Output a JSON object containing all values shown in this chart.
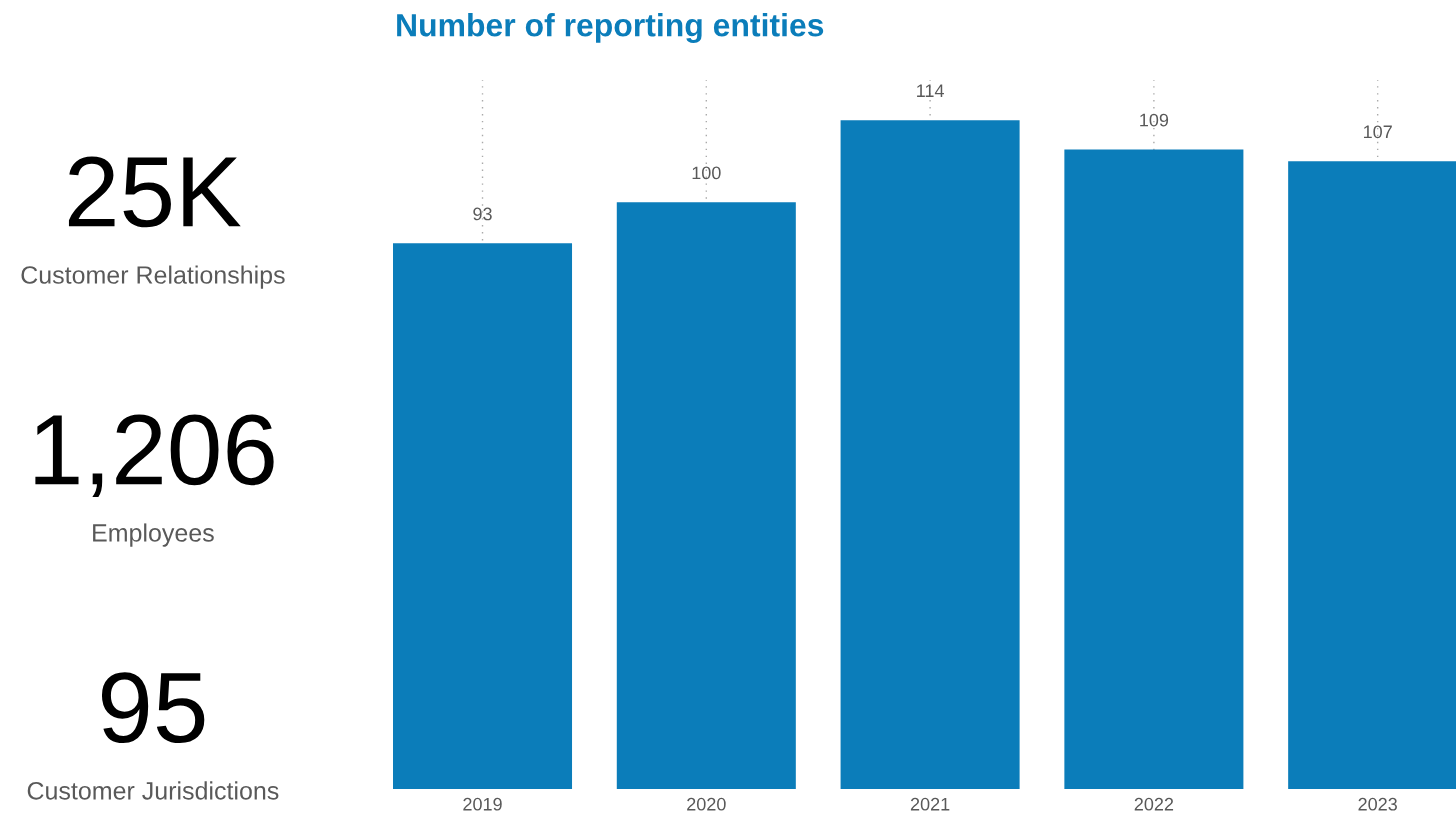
{
  "chart_data": [
    {
      "type": "other",
      "annotations": [
        "25K",
        "Customer Relationships",
        "1,206",
        "Employees",
        "95",
        "Customer Jurisdictions"
      ]
    },
    {
      "type": "bar",
      "title": "Number of reporting entities",
      "categories": [
        "2019",
        "2020",
        "2021",
        "2022",
        "2023"
      ],
      "values": [
        93,
        100,
        114,
        109,
        107
      ],
      "color": "#0b7dba",
      "data_labels": true,
      "grid": "x"
    }
  ]
}
